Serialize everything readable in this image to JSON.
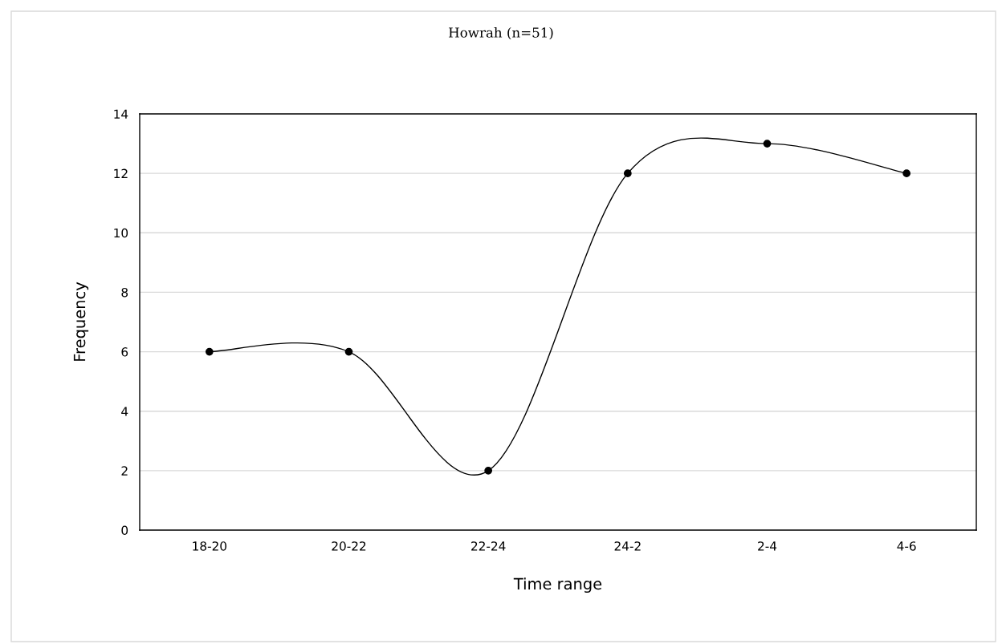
{
  "chart_data": {
    "type": "line",
    "title": "Howrah (n=51)",
    "xlabel": "Time range",
    "ylabel": "Frequency",
    "categories": [
      "18-20",
      "20-22",
      "22-24",
      "24-2",
      "2-4",
      "4-6"
    ],
    "series": [
      {
        "color": "#000000",
        "values": [
          6,
          6,
          2,
          12,
          13,
          12
        ]
      }
    ],
    "ylim": [
      0,
      14
    ],
    "yticks": [
      0,
      2,
      4,
      6,
      8,
      10,
      12,
      14
    ],
    "grid": "y",
    "marker": "circle",
    "line_style": "solid",
    "legend": false
  }
}
